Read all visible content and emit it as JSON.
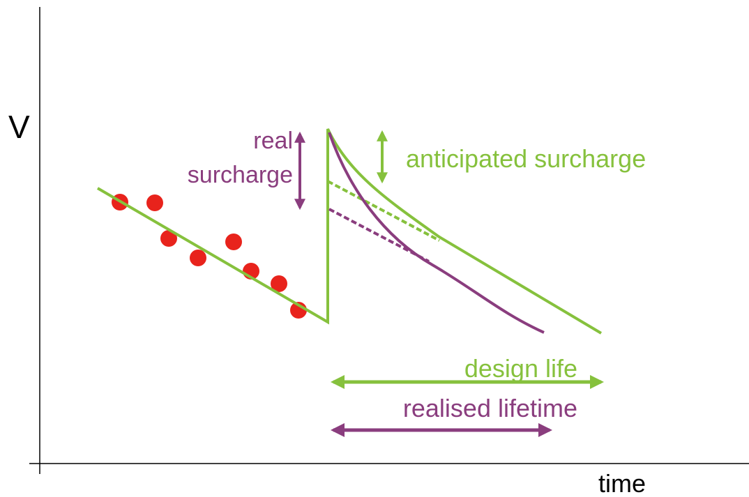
{
  "axes": {
    "y_label": "V",
    "x_label": "time"
  },
  "annotations": {
    "real_surcharge": [
      "real",
      "surcharge"
    ],
    "anticipated_surcharge": "anticipated surcharge",
    "design_life": "design life",
    "realised_lifetime": "realised lifetime"
  }
}
